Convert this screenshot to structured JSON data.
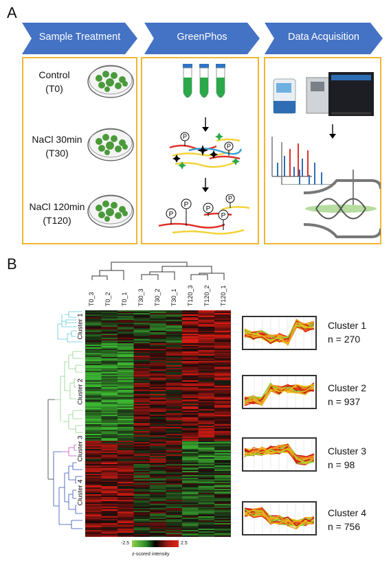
{
  "panels": {
    "a": "A",
    "b": "B"
  },
  "steps": [
    {
      "label": "Sample Treatment"
    },
    {
      "label": "GreenPhos"
    },
    {
      "label": "Data Acquisition"
    }
  ],
  "treatments": [
    {
      "name": "Control",
      "code": "(T0)"
    },
    {
      "name": "NaCl 30min",
      "code": "(T30)"
    },
    {
      "name": "NaCl 120min",
      "code": "(T120)"
    }
  ],
  "phospho_label": "P",
  "samples": [
    "T0_3",
    "T0_2",
    "T0_1",
    "T30_3",
    "T30_2",
    "T30_1",
    "T120_3",
    "T120_2",
    "T120_1"
  ],
  "clusters": [
    {
      "name": "Cluster 1",
      "n": "n = 270"
    },
    {
      "name": "Cluster 2",
      "n": "n = 937"
    },
    {
      "name": "Cluster 3",
      "n": "n = 98"
    },
    {
      "name": "Cluster 4",
      "n": "n = 756"
    }
  ],
  "legend": {
    "min": "-2.5",
    "max": "2.5",
    "title": "z-scored intensity"
  },
  "colors": {
    "arrow": "#4472c4",
    "box_border": "#f2b632",
    "cluster1": "#5bc8d9",
    "cluster2": "#8fd18a",
    "cluster3": "#c04fc0",
    "cluster4": "#2e4db8",
    "heat_low": "#1db954",
    "heat_high": "#e2231a"
  }
}
